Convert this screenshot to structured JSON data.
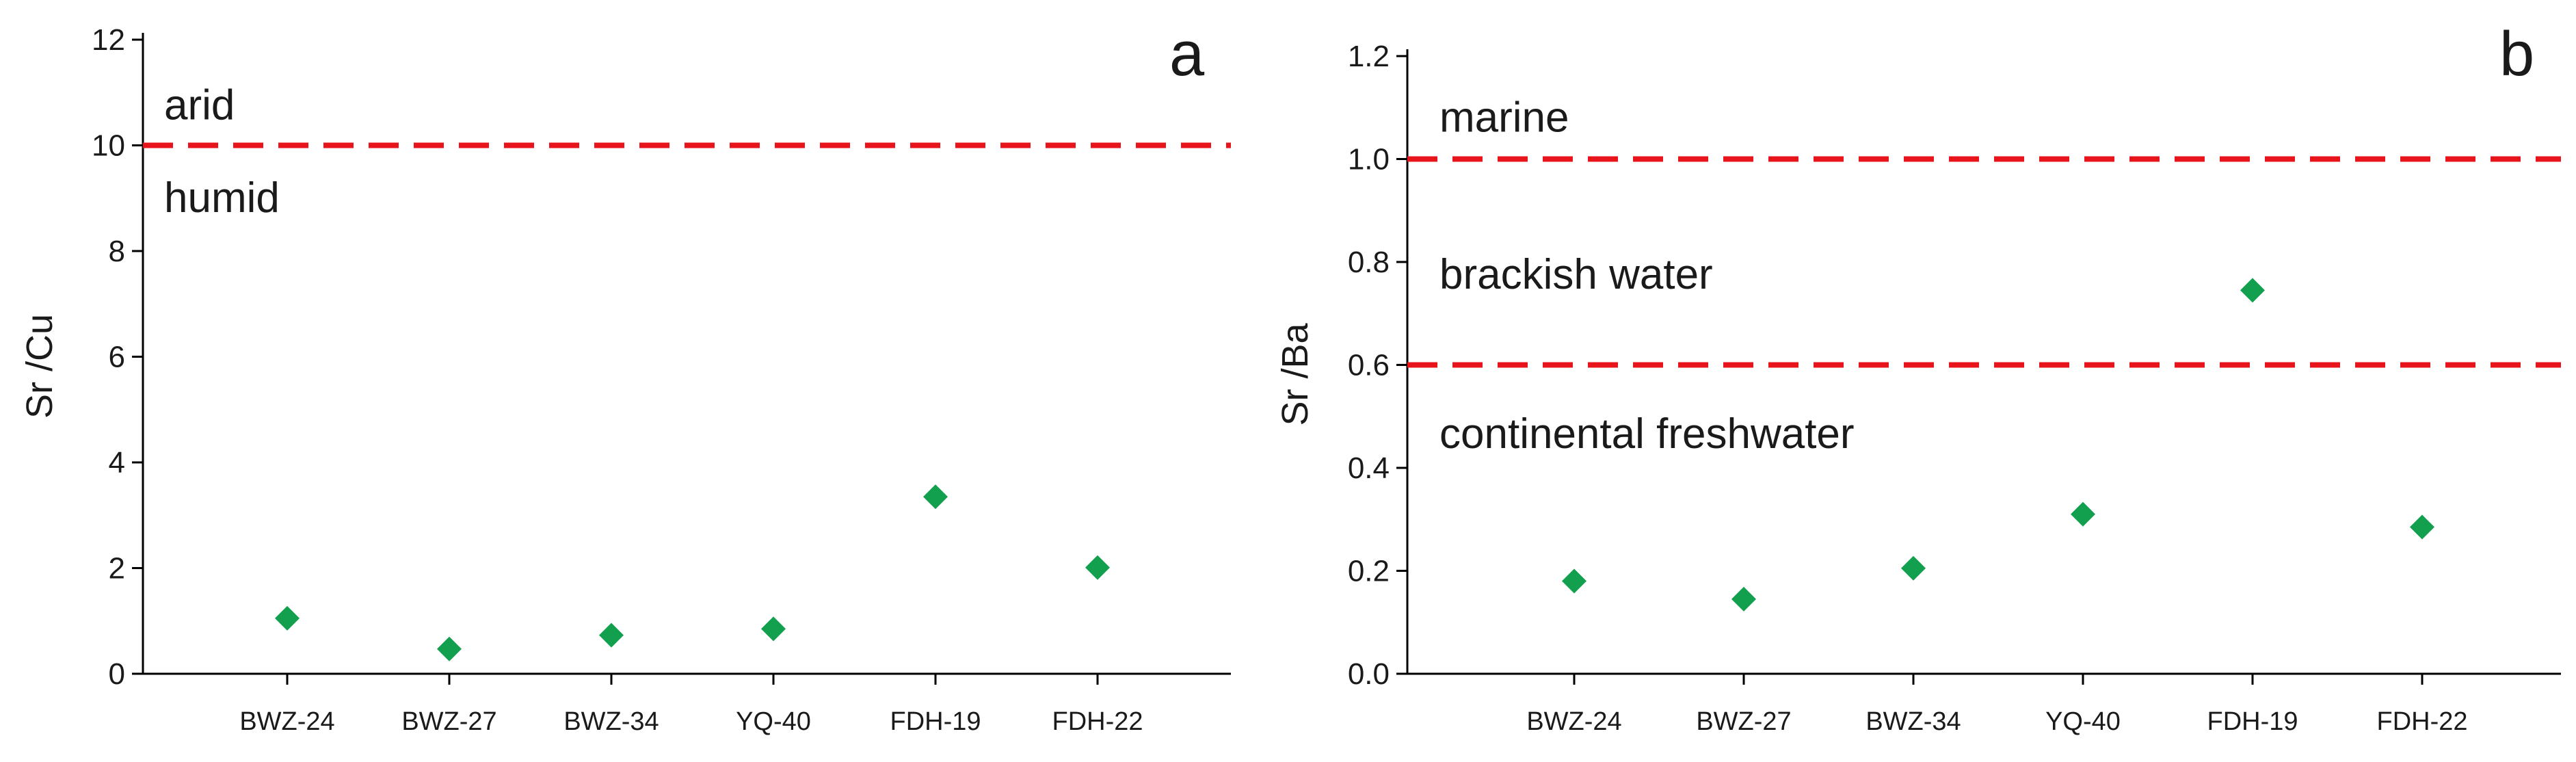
{
  "colors": {
    "axis": "#000000",
    "threshold": "#e8141c",
    "marker": "#12a04e",
    "text": "#1a1a1a"
  },
  "chart_data": [
    {
      "panel_label": "a",
      "type": "scatter",
      "ylabel": "Sr /Cu",
      "ylim": [
        0,
        12
      ],
      "yticks": [
        0,
        2,
        4,
        6,
        8,
        10,
        12
      ],
      "ytick_decimals": 0,
      "categories": [
        "BWZ-24",
        "BWZ-27",
        "BWZ-34",
        "YQ-40",
        "FDH-19",
        "FDH-22"
      ],
      "values": [
        1.05,
        0.47,
        0.73,
        0.85,
        3.35,
        2.01
      ],
      "marker": "diamond",
      "grid": false,
      "thresholds": [
        {
          "value": 10,
          "style": "dashed"
        }
      ],
      "region_labels": [
        {
          "text": "arid",
          "y": 10.75
        },
        {
          "text": "humid",
          "y": 9.0
        }
      ]
    },
    {
      "panel_label": "b",
      "type": "scatter",
      "ylabel": "Sr /Ba",
      "ylim": [
        0,
        1.2
      ],
      "yticks": [
        0.0,
        0.2,
        0.4,
        0.6,
        0.8,
        1.0,
        1.2
      ],
      "ytick_decimals": 1,
      "categories": [
        "BWZ-24",
        "BWZ-27",
        "BWZ-34",
        "YQ-40",
        "FDH-19",
        "FDH-22"
      ],
      "values": [
        0.18,
        0.145,
        0.205,
        0.31,
        0.745,
        0.285
      ],
      "marker": "diamond",
      "grid": false,
      "thresholds": [
        {
          "value": 1.0,
          "style": "dashed"
        },
        {
          "value": 0.6,
          "style": "dashed"
        }
      ],
      "region_labels": [
        {
          "text": "marine",
          "y": 1.08
        },
        {
          "text": "brackish water",
          "y": 0.775
        },
        {
          "text": "continental freshwater",
          "y": 0.465
        }
      ]
    }
  ]
}
